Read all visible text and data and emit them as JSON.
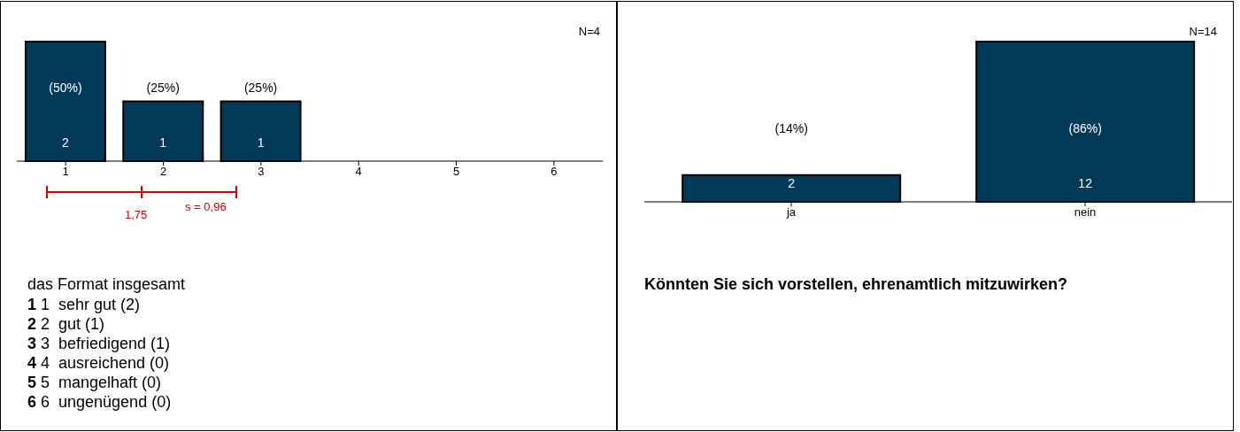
{
  "chart_data": [
    {
      "type": "bar",
      "title": "das Format insgesamt",
      "categories": [
        "1",
        "2",
        "3",
        "4",
        "5",
        "6"
      ],
      "values": [
        2,
        1,
        1,
        0,
        0,
        0
      ],
      "value_labels": [
        "2",
        "1",
        "1",
        null,
        null,
        null
      ],
      "color": "#003a57",
      "grid": false,
      "legend": false,
      "annotations": [
        "N=4",
        "(50%)",
        "(25%)",
        "(25%)",
        "1,75",
        "s = 0,96",
        "1 1  sehr gut (2)",
        "2 2  gut (1)",
        "3 3  befriedigend (1)",
        "4 4  ausreichend (0)",
        "5 5  mangelhaft (0)",
        "6 6  ungenügend (0)"
      ]
    },
    {
      "type": "bar",
      "title": "Könnten Sie sich vorstellen, ehrenamtlich mitzuwirken?",
      "categories": [
        "ja",
        "nein"
      ],
      "values": [
        2,
        12
      ],
      "value_labels": [
        "2",
        "12"
      ],
      "color": "#003a57",
      "grid": false,
      "legend": false,
      "annotations": [
        "N=14",
        "(14%)",
        "(86%)"
      ]
    }
  ]
}
